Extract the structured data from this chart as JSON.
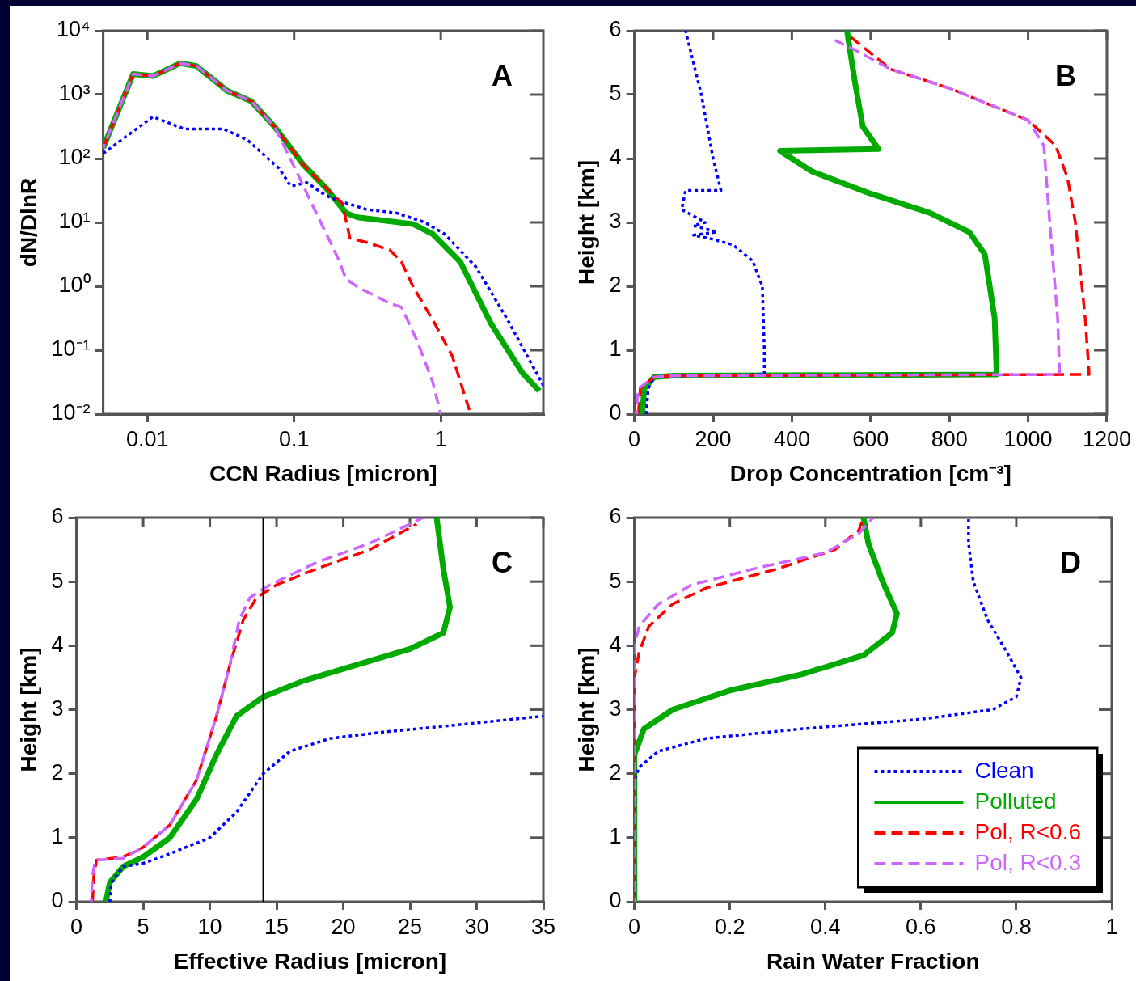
{
  "chart_data": [
    {
      "type": "line",
      "xlabel": "CCN Radius [micron]",
      "ylabel": "dN/DlnR",
      "annotations": [
        "A"
      ],
      "log": "xy",
      "xlim": [
        0.005,
        5
      ],
      "xticks": [
        0.01,
        0.1,
        1
      ],
      "ylim": [
        0.01,
        10000
      ],
      "yticks": [
        {
          "value": 0.01,
          "label": "10⁻²"
        },
        {
          "value": 0.1,
          "label": "10⁻¹"
        },
        {
          "value": 1,
          "label": "10⁰"
        },
        {
          "value": 10,
          "label": "10¹"
        },
        {
          "value": 100,
          "label": "10²"
        },
        {
          "value": 1000,
          "label": "10³"
        },
        {
          "value": 10000,
          "label": "10⁴"
        }
      ],
      "series": [
        {
          "color": "#0000ff",
          "line_style": "dotted",
          "x": [
            0.005,
            0.0109,
            0.0179,
            0.033,
            0.048,
            0.079,
            0.095,
            0.122,
            0.166,
            0.213,
            0.309,
            0.5,
            0.78,
            1.06,
            1.74,
            2.85,
            3.9,
            5
          ],
          "values": [
            120,
            450,
            290,
            290,
            196,
            70,
            37,
            42,
            26,
            21,
            16,
            14,
            10,
            6.6,
            2,
            0.3,
            0.08,
            0.028
          ]
        },
        {
          "color": "#00aa00",
          "line_style": "solid",
          "x": [
            0.005,
            0.008,
            0.0109,
            0.0168,
            0.0216,
            0.035,
            0.051,
            0.074,
            0.115,
            0.166,
            0.226,
            0.272,
            0.65,
            0.88,
            1.36,
            2.2,
            3.6,
            4.7
          ],
          "values": [
            147,
            2100,
            1950,
            3100,
            2800,
            1150,
            790,
            310,
            81,
            34,
            14,
            12,
            9.4,
            6.6,
            2.4,
            0.26,
            0.044,
            0.023
          ]
        },
        {
          "color": "#ff0000",
          "line_style": "dashed",
          "x": [
            0.005,
            0.008,
            0.0109,
            0.0168,
            0.0216,
            0.035,
            0.051,
            0.074,
            0.115,
            0.166,
            0.213,
            0.24,
            0.31,
            0.45,
            0.54,
            0.65,
            0.88,
            1.2,
            1.54,
            1.6
          ],
          "values": [
            147,
            2100,
            1950,
            3100,
            2800,
            1150,
            790,
            310,
            81,
            34,
            20,
            5.7,
            4.9,
            3.7,
            2.4,
            0.97,
            0.3,
            0.08,
            0.013,
            0.01
          ]
        },
        {
          "color": "#cc66ff",
          "line_style": "dashed",
          "x": [
            0.005,
            0.008,
            0.0109,
            0.0168,
            0.0216,
            0.035,
            0.051,
            0.074,
            0.084,
            0.108,
            0.13,
            0.166,
            0.2,
            0.226,
            0.272,
            0.45,
            0.54,
            0.69,
            0.88,
            1.0
          ],
          "values": [
            147,
            2100,
            1950,
            3100,
            2800,
            1150,
            790,
            310,
            170,
            52,
            21,
            6.6,
            2.7,
            1.3,
            0.97,
            0.54,
            0.47,
            0.14,
            0.032,
            0.01
          ]
        }
      ]
    },
    {
      "type": "line",
      "xlabel": "Drop Concentration [cm⁻³]",
      "ylabel": "Height [km]",
      "annotations": [
        "B"
      ],
      "xlim": [
        0,
        1200
      ],
      "xticks": [
        0,
        200,
        400,
        600,
        800,
        1000,
        1200
      ],
      "ylim": [
        0,
        6
      ],
      "yticks": [
        0,
        1,
        2,
        3,
        4,
        5,
        6
      ],
      "series": [
        {
          "color": "#0000ff",
          "line_style": "dotted",
          "x": [
            30,
            35,
            50,
            100,
            330,
            330,
            325,
            300,
            250,
            190,
            150,
            210,
            150,
            180,
            120,
            130,
            220,
            200,
            170,
            130
          ],
          "values": [
            0,
            0.4,
            0.58,
            0.6,
            0.62,
            1.0,
            2.0,
            2.4,
            2.65,
            2.75,
            2.8,
            2.85,
            2.95,
            3.0,
            3.2,
            3.5,
            3.5,
            4.0,
            5.0,
            6.0
          ]
        },
        {
          "color": "#00aa00",
          "line_style": "solid",
          "x": [
            20,
            25,
            50,
            100,
            920,
            915,
            890,
            850,
            750,
            600,
            450,
            370,
            620,
            580,
            560,
            540
          ],
          "values": [
            0,
            0.4,
            0.58,
            0.6,
            0.62,
            1.5,
            2.5,
            2.85,
            3.15,
            3.45,
            3.8,
            4.12,
            4.15,
            4.5,
            5.2,
            6.0
          ]
        },
        {
          "color": "#ff0000",
          "line_style": "dashed",
          "x": [
            10,
            15,
            50,
            100,
            1155,
            1145,
            1120,
            1100,
            1070,
            1000,
            800,
            650,
            580,
            550
          ],
          "values": [
            0,
            0.4,
            0.58,
            0.6,
            0.62,
            1.5,
            3.0,
            3.7,
            4.2,
            4.6,
            5.1,
            5.4,
            5.75,
            5.9
          ]
        },
        {
          "color": "#cc66ff",
          "line_style": "dashed",
          "x": [
            5,
            10,
            50,
            100,
            1080,
            1075,
            1055,
            1040,
            1000,
            800,
            650,
            560,
            510
          ],
          "values": [
            0,
            0.4,
            0.58,
            0.6,
            0.62,
            1.5,
            3.0,
            4.2,
            4.6,
            5.1,
            5.4,
            5.7,
            5.85
          ]
        }
      ]
    },
    {
      "type": "line",
      "xlabel": "Effective Radius [micron]",
      "ylabel": "Height [km]",
      "annotations": [
        "C"
      ],
      "xlim": [
        0,
        35
      ],
      "xticks": [
        0,
        5,
        10,
        15,
        20,
        25,
        30,
        35
      ],
      "ylim": [
        0,
        6
      ],
      "yticks": [
        0,
        1,
        2,
        3,
        4,
        5,
        6
      ],
      "ref_lines": [
        {
          "axis": "x",
          "value": 14,
          "color": "#000000"
        }
      ],
      "series": [
        {
          "color": "#0000ff",
          "line_style": "dotted",
          "x": [
            2.5,
            2.6,
            3.5,
            5,
            7,
            10,
            12,
            14,
            16,
            19,
            23,
            28,
            35
          ],
          "values": [
            0,
            0.3,
            0.55,
            0.6,
            0.75,
            1.0,
            1.4,
            2.0,
            2.35,
            2.55,
            2.65,
            2.75,
            2.9
          ]
        },
        {
          "color": "#00aa00",
          "line_style": "solid",
          "x": [
            2.2,
            2.5,
            3.5,
            5,
            7,
            9,
            10.5,
            12,
            14,
            17,
            21,
            25,
            27.5,
            28,
            27.5,
            27
          ],
          "values": [
            0,
            0.3,
            0.55,
            0.7,
            1.0,
            1.6,
            2.3,
            2.9,
            3.2,
            3.45,
            3.7,
            3.95,
            4.2,
            4.6,
            5.2,
            6.0
          ]
        },
        {
          "color": "#ff0000",
          "line_style": "dashed",
          "x": [
            1.2,
            1.3,
            1.5,
            3.5,
            5,
            7,
            9,
            10.5,
            11.5,
            12.5,
            13.5,
            15,
            18,
            22,
            25.5
          ],
          "values": [
            0,
            0.4,
            0.65,
            0.7,
            0.85,
            1.2,
            1.9,
            2.9,
            3.7,
            4.4,
            4.75,
            4.95,
            5.2,
            5.5,
            5.9
          ]
        },
        {
          "color": "#cc66ff",
          "line_style": "dashed",
          "x": [
            1.1,
            1.2,
            1.4,
            3.5,
            5,
            7,
            9,
            10.5,
            11.5,
            12.2,
            13,
            14.5,
            18,
            22,
            26
          ],
          "values": [
            0,
            0.4,
            0.65,
            0.68,
            0.85,
            1.2,
            1.9,
            2.9,
            3.7,
            4.4,
            4.75,
            4.95,
            5.3,
            5.6,
            6.0
          ]
        }
      ]
    },
    {
      "type": "line",
      "xlabel": "Rain Water Fraction",
      "ylabel": "Height [km]",
      "annotations": [
        "D"
      ],
      "legend": "bottom right",
      "xlim": [
        0,
        1
      ],
      "xticks": [
        0,
        0.2,
        0.4,
        0.6,
        0.8,
        1
      ],
      "ylim": [
        0,
        6
      ],
      "yticks": [
        0,
        1,
        2,
        3,
        4,
        5,
        6
      ],
      "series": [
        {
          "name": "Clean",
          "color": "#0000ff",
          "line_style": "dotted",
          "x": [
            0,
            0,
            0.01,
            0.05,
            0.15,
            0.35,
            0.6,
            0.75,
            0.8,
            0.81,
            0.78,
            0.74,
            0.71,
            0.7,
            0.7
          ],
          "values": [
            0,
            1.9,
            2.1,
            2.35,
            2.55,
            2.7,
            2.85,
            3.0,
            3.2,
            3.5,
            3.9,
            4.4,
            5.0,
            5.6,
            6.0
          ]
        },
        {
          "name": "Polluted",
          "color": "#00aa00",
          "line_style": "solid",
          "x": [
            0,
            0,
            0.02,
            0.08,
            0.2,
            0.35,
            0.48,
            0.54,
            0.55,
            0.52,
            0.49,
            0.48
          ],
          "values": [
            0,
            2.3,
            2.7,
            3.0,
            3.3,
            3.55,
            3.85,
            4.2,
            4.5,
            5.0,
            5.6,
            6.0
          ]
        },
        {
          "name": "Pol, R<0.6",
          "color": "#ff0000",
          "line_style": "dashed",
          "x": [
            0,
            0,
            0.01,
            0.03,
            0.08,
            0.15,
            0.3,
            0.42,
            0.47,
            0.48
          ],
          "values": [
            0,
            3.5,
            3.9,
            4.3,
            4.65,
            4.9,
            5.2,
            5.5,
            5.8,
            6.0
          ]
        },
        {
          "name": "Pol, R<0.3",
          "color": "#cc66ff",
          "line_style": "dashed",
          "x": [
            0,
            0,
            0.01,
            0.05,
            0.12,
            0.25,
            0.4,
            0.47,
            0.5
          ],
          "values": [
            0,
            4.0,
            4.3,
            4.65,
            4.95,
            5.2,
            5.45,
            5.75,
            6.0
          ]
        }
      ]
    }
  ]
}
